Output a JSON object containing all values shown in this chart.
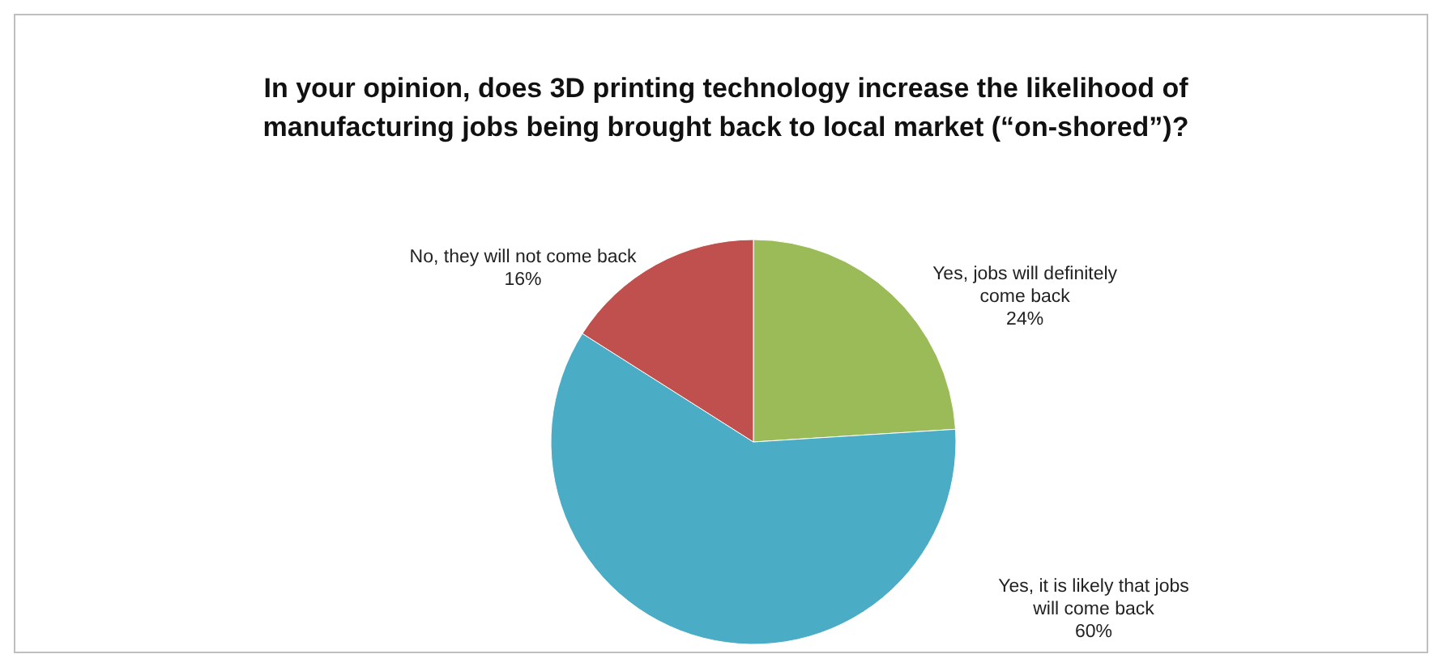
{
  "chart_data": {
    "type": "pie",
    "title": "In your opinion, does 3D printing technology increase the likelihood of manufacturing jobs being brought back to local market (“on-shored”)?",
    "categories": [
      "Yes, jobs will definitely come back",
      "Yes, it is likely that jobs will come back",
      "No, they will not come back"
    ],
    "values": [
      24,
      60,
      16
    ],
    "colors": [
      "#9bbb59",
      "#4bacc6",
      "#c0504d"
    ],
    "value_labels": [
      "24%",
      "60%",
      "16%"
    ],
    "legend": false
  }
}
